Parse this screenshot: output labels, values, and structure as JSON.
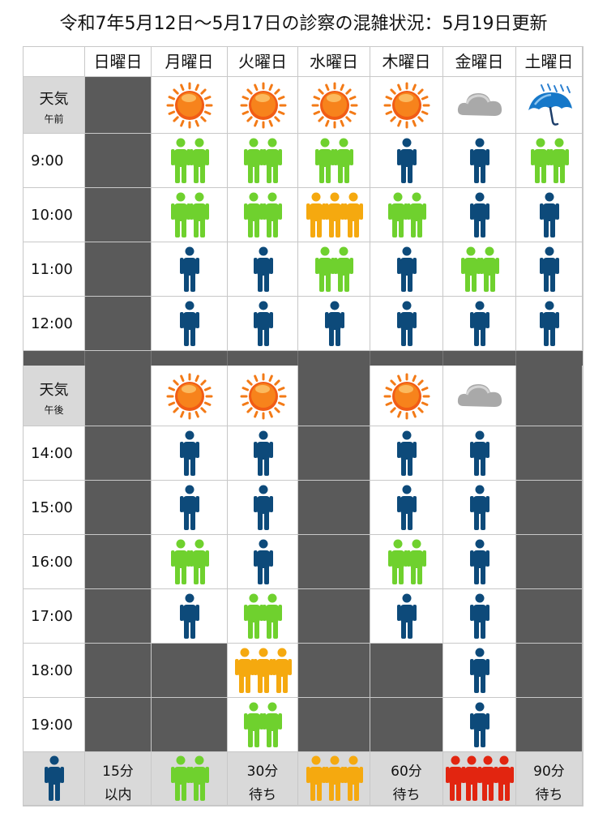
{
  "title": "令和7年5月12日〜5月17日の診察の混雑状況：5月19日更新",
  "days": [
    "日曜日",
    "月曜日",
    "火曜日",
    "水曜日",
    "木曜日",
    "金曜日",
    "土曜日"
  ],
  "weather_label": "天気",
  "am_label": "午前",
  "pm_label": "午後",
  "am": {
    "weather": [
      "none",
      "sun",
      "sun",
      "sun",
      "sun",
      "cloud",
      "umbrella"
    ],
    "rows": [
      {
        "time": "9:00",
        "levels": [
          -1,
          2,
          2,
          2,
          1,
          1,
          2
        ]
      },
      {
        "time": "10:00",
        "levels": [
          -1,
          2,
          2,
          3,
          2,
          1,
          1
        ]
      },
      {
        "time": "11:00",
        "levels": [
          -1,
          1,
          1,
          2,
          1,
          2,
          1
        ]
      },
      {
        "time": "12:00",
        "levels": [
          -1,
          1,
          1,
          1,
          1,
          1,
          1
        ]
      }
    ]
  },
  "pm": {
    "weather": [
      "none",
      "sun",
      "sun",
      "none",
      "sun",
      "cloud",
      "none"
    ],
    "rows": [
      {
        "time": "14:00",
        "levels": [
          -1,
          1,
          1,
          -1,
          1,
          1,
          -1
        ]
      },
      {
        "time": "15:00",
        "levels": [
          -1,
          1,
          1,
          -1,
          1,
          1,
          -1
        ]
      },
      {
        "time": "16:00",
        "levels": [
          -1,
          2,
          1,
          -1,
          2,
          1,
          -1
        ]
      },
      {
        "time": "17:00",
        "levels": [
          -1,
          1,
          2,
          -1,
          1,
          1,
          -1
        ]
      },
      {
        "time": "18:00",
        "levels": [
          -1,
          -1,
          3,
          -1,
          -1,
          1,
          -1
        ]
      },
      {
        "time": "19:00",
        "levels": [
          -1,
          -1,
          2,
          -1,
          -1,
          1,
          -1
        ]
      }
    ]
  },
  "legend": [
    {
      "level": 1,
      "line1": "15分",
      "line2": "以内"
    },
    {
      "level": 2,
      "line1": "30分",
      "line2": "待ち"
    },
    {
      "level": 3,
      "line1": "60分",
      "line2": "待ち"
    },
    {
      "level": 4,
      "line1": "90分",
      "line2": "待ち"
    }
  ],
  "colors": {
    "level1": "#0d4a7a",
    "level2": "#6fd12e",
    "level3": "#f5a90f",
    "level4": "#e22510",
    "closed": "#5a5a5a",
    "header_gray": "#d9d9d9"
  },
  "icons": {
    "sun": "sun-icon",
    "cloud": "cloud-icon",
    "umbrella": "umbrella-icon",
    "person": "person-icon"
  }
}
